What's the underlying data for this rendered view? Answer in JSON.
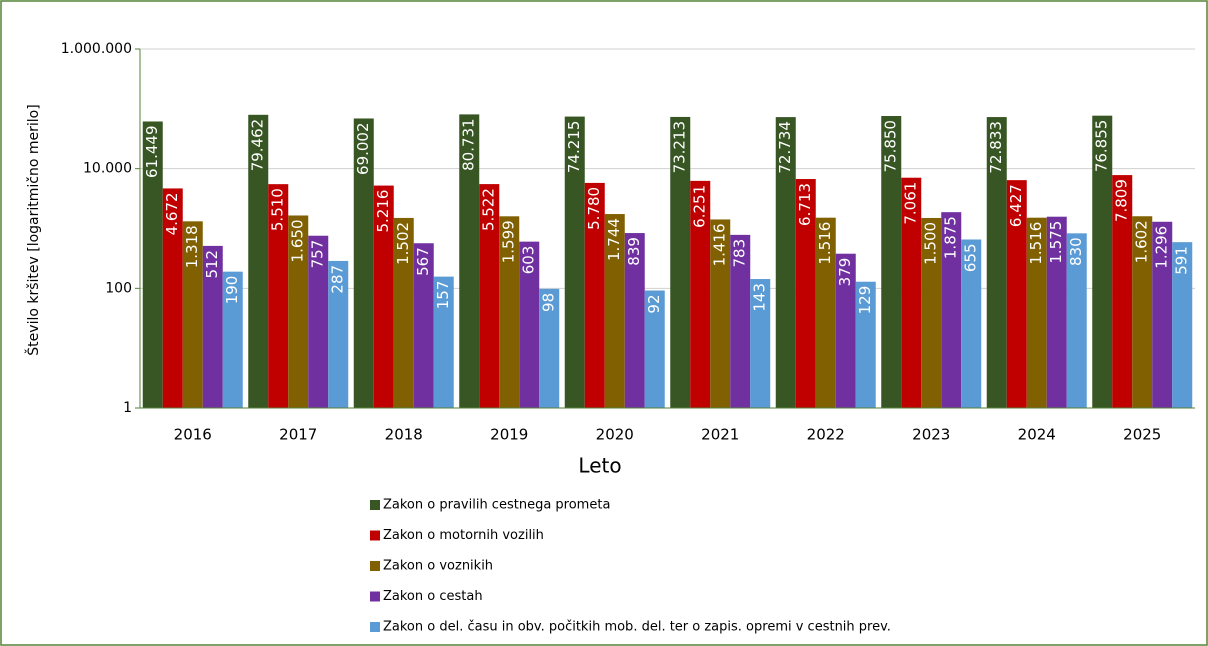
{
  "chart_data": {
    "type": "bar",
    "log_scale": true,
    "grid": true,
    "legend": "bottom",
    "y_label": "Število kršitev [logaritmično merilo]",
    "x_label": "Leto",
    "categories": [
      "2016",
      "2017",
      "2018",
      "2019",
      "2020",
      "2021",
      "2022",
      "2023",
      "2024",
      "2025"
    ],
    "ylim": [
      1,
      1000000
    ],
    "yticks": [
      1,
      100,
      {
        "value": 10000,
        "label": "10.000"
      },
      {
        "value": 1000000,
        "label": "1.000.000"
      }
    ],
    "series": [
      {
        "name": "Zakon o pravilih cestnega prometa",
        "color": "#375623",
        "values": [
          61449,
          79462,
          69002,
          80731,
          74215,
          73213,
          72734,
          75850,
          72833,
          76855
        ],
        "value_labels": [
          "61.449",
          "79.462",
          "69.002",
          "80.731",
          "74.215",
          "73.213",
          "72.734",
          "75.850",
          "72.833",
          "76.855"
        ]
      },
      {
        "name": "Zakon o motornih vozilih",
        "color": "#c00000",
        "values": [
          4672,
          5510,
          5216,
          5522,
          5780,
          6251,
          6713,
          7061,
          6427,
          7809
        ],
        "value_labels": [
          "4.672",
          "5.510",
          "5.216",
          "5.522",
          "5.780",
          "6.251",
          "6.713",
          "7.061",
          "6.427",
          "7.809"
        ]
      },
      {
        "name": "Zakon o voznikih",
        "color": "#806000",
        "values": [
          1318,
          1650,
          1502,
          1599,
          1744,
          1416,
          1516,
          1500,
          1516,
          1602
        ],
        "value_labels": [
          "1.318",
          "1.650",
          "1.502",
          "1.599",
          "1.744",
          "1.416",
          "1.516",
          "1.500",
          "1.516",
          "1.602"
        ]
      },
      {
        "name": "Zakon o cestah",
        "color": "#7030a0",
        "values": [
          512,
          757,
          567,
          603,
          839,
          783,
          379,
          1875,
          1575,
          1296
        ],
        "value_labels": [
          "512",
          "757",
          "567",
          "603",
          "839",
          "783",
          "379",
          "1.875",
          "1.575",
          "1.296"
        ]
      },
      {
        "name": "Zakon o del. času in obv. počitkih mob. del. ter o zapis. opremi v cestnih prev.",
        "color": "#5b9bd5",
        "values": [
          190,
          287,
          157,
          98,
          92,
          143,
          129,
          655,
          830,
          591
        ],
        "value_labels": [
          "190",
          "287",
          "157",
          "98",
          "92",
          "143",
          "129",
          "655",
          "830",
          "591"
        ]
      }
    ]
  }
}
